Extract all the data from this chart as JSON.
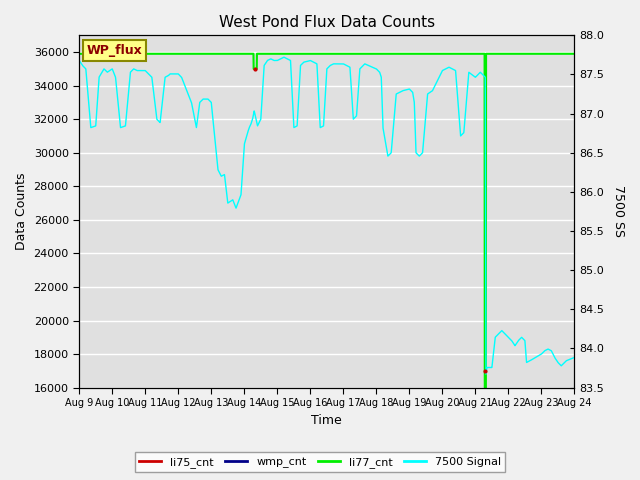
{
  "title": "West Pond Flux Data Counts",
  "xlabel": "Time",
  "ylabel": "Data Counts",
  "ylabel2": "7500 SS",
  "legend_label": "WP_flux",
  "ylim": [
    16000,
    37000
  ],
  "y2lim": [
    83.5,
    88.0
  ],
  "yticks": [
    16000,
    18000,
    20000,
    22000,
    24000,
    26000,
    28000,
    30000,
    32000,
    34000,
    36000
  ],
  "y2ticks": [
    83.5,
    84.0,
    84.5,
    85.0,
    85.5,
    86.0,
    86.5,
    87.0,
    87.5,
    88.0
  ],
  "xtick_labels": [
    "Aug 9",
    "Aug 10",
    "Aug 11",
    "Aug 12",
    "Aug 13",
    "Aug 14",
    "Aug 15",
    "Aug 16",
    "Aug 17",
    "Aug 18",
    "Aug 19",
    "Aug 20",
    "Aug 21",
    "Aug 22",
    "Aug 23",
    "Aug 24"
  ],
  "bg_color": "#e0e0e0",
  "grid_color": "#ffffff",
  "fig_bg_color": "#f0f0f0",
  "line_color_cyan": "#00FFFF",
  "line_color_green": "#00EE00",
  "line_color_red": "#CC0000",
  "line_color_blue": "#000088",
  "legend_entries": [
    "li75_cnt",
    "wmp_cnt",
    "li77_cnt",
    "7500 Signal"
  ],
  "legend_colors": [
    "#CC0000",
    "#000088",
    "#00EE00",
    "#00FFFF"
  ],
  "wp_flux_color": "#8B0000",
  "wp_flux_bg": "#FFFF88",
  "wp_flux_edge": "#888800"
}
